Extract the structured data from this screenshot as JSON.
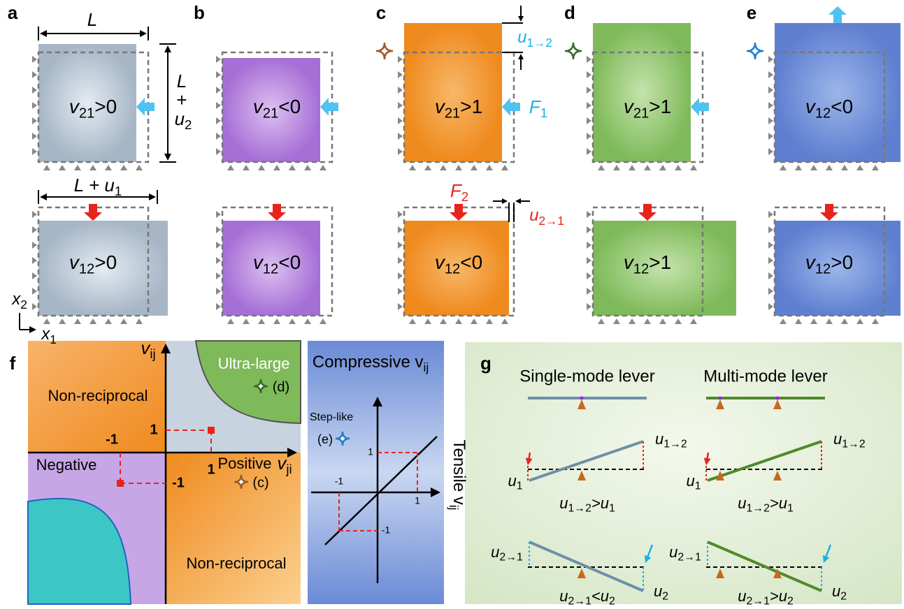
{
  "panels": [
    {
      "label": "a",
      "top": {
        "m": "v",
        "s": "21",
        "r": ">0"
      },
      "bottom": {
        "m": "v",
        "s": "12",
        "r": ">0"
      }
    },
    {
      "label": "b",
      "top": {
        "m": "v",
        "s": "21",
        "r": "<0"
      },
      "bottom": {
        "m": "v",
        "s": "12",
        "r": "<0"
      }
    },
    {
      "label": "c",
      "top": {
        "m": "v",
        "s": "21",
        "r": ">1"
      },
      "bottom": {
        "m": "v",
        "s": "12",
        "r": "<0"
      }
    },
    {
      "label": "d",
      "top": {
        "m": "v",
        "s": "21",
        "r": ">1"
      },
      "bottom": {
        "m": "v",
        "s": "12",
        "r": ">1"
      }
    },
    {
      "label": "e",
      "top": {
        "m": "v",
        "s": "12",
        "r": "<0"
      },
      "bottom": {
        "m": "v",
        "s": "12",
        "r": ">0"
      }
    }
  ],
  "panel_a": {
    "width": {
      "m": "L"
    },
    "height": {
      "m": "L"
    },
    "plus": {
      "m": "+"
    },
    "disp": {
      "m": "u",
      "s": "2"
    },
    "new_width": {
      "m": "L + u",
      "s": "1"
    },
    "axis_y": {
      "m": "x",
      "s": "2"
    },
    "axis_x": {
      "m": "x",
      "s": "1"
    }
  },
  "panel_c": {
    "u12": {
      "m": "u",
      "s": "1→2"
    },
    "f1": {
      "m": "F",
      "s": "1"
    },
    "f2": {
      "m": "F",
      "s": "2"
    },
    "u21": {
      "m": "u",
      "s": "2→1"
    }
  },
  "panel_f": {
    "label": "f",
    "y_axis": {
      "m": "v",
      "s": "ij"
    },
    "x_axis": {
      "m": "v",
      "s": "ji"
    },
    "top_left": "Non-reciprocal",
    "top_right": "Ultra-large",
    "ref_d": "(d)",
    "positive": "Positive",
    "negative": "Negative",
    "ref_c": "(c)",
    "bottom_right": "Non-reciprocal",
    "ticks": {
      "y_pos": 1,
      "y_neg": -1,
      "x_pos": 1,
      "x_neg": -1
    }
  },
  "panel_f2": {
    "title": {
      "m": "Compressive v",
      "s": "ij"
    },
    "step": "Step-like",
    "ref_e": "(e)",
    "side": {
      "m": "Tensile v",
      "s": "ij"
    },
    "ticks": {
      "y_pos": 1,
      "x_pos": 1,
      "x_neg": -1,
      "y_neg": -1
    }
  },
  "panel_g": {
    "label": "g",
    "left": {
      "title": "Single-mode lever",
      "u1": {
        "m": "u",
        "s": "1"
      },
      "u12": {
        "m": "u",
        "s": "1→2"
      },
      "eq1": {
        "m": "u",
        "s": "1→2",
        "r": ">u",
        "s2": "1"
      },
      "u21": {
        "m": "u",
        "s": "2→1"
      },
      "u2": {
        "m": "u",
        "s": "2"
      },
      "eq2": {
        "m": "u",
        "s": "2→1",
        "r": "<u",
        "s2": "2"
      }
    },
    "right": {
      "title": "Multi-mode lever",
      "u1": {
        "m": "u",
        "s": "1"
      },
      "u12": {
        "m": "u",
        "s": "1→2"
      },
      "eq1": {
        "m": "u",
        "s": "1→2",
        "r": ">u",
        "s2": "1"
      },
      "u21": {
        "m": "u",
        "s": "2→1"
      },
      "u2": {
        "m": "u",
        "s": "2"
      },
      "eq2": {
        "m": "u",
        "s": "2→1",
        "r": ">u",
        "s2": "2"
      }
    }
  }
}
